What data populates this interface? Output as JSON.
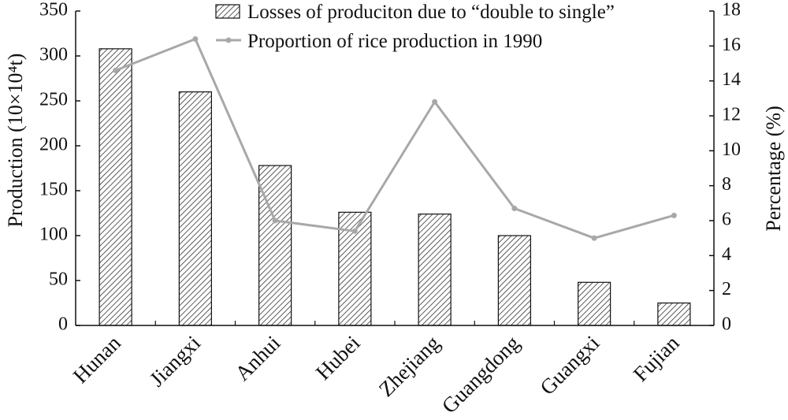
{
  "chart_data": {
    "type": "bar",
    "categories": [
      "Hunan",
      "Jiangxi",
      "Anhui",
      "Hubei",
      "Zhejiang",
      "Guangdong",
      "Guangxi",
      "Fujian"
    ],
    "series": [
      {
        "name": "Losses of produciton due to “double to single”",
        "type": "bar",
        "axis": "left",
        "values": [
          308,
          260,
          178,
          126,
          124,
          100,
          48,
          25
        ]
      },
      {
        "name": "Proportion of rice production in 1990",
        "type": "line",
        "axis": "right",
        "values": [
          14.6,
          16.4,
          6.0,
          5.4,
          12.8,
          6.7,
          5.0,
          6.3
        ]
      }
    ],
    "ylabel": "Production (10×10⁴t)",
    "ylabel_right": "Percentage (%)",
    "ylim": [
      0,
      350
    ],
    "ylim_right": [
      0,
      18
    ],
    "yticks": [
      0,
      50,
      100,
      150,
      200,
      250,
      300,
      350
    ],
    "yticks_right": [
      0,
      2,
      4,
      6,
      8,
      10,
      12,
      14,
      16,
      18
    ],
    "legend_position": "top-right",
    "grid": false,
    "colors": {
      "bar_stroke": "#111111",
      "hatch": "#333333",
      "line": "#a8a8a8"
    }
  }
}
